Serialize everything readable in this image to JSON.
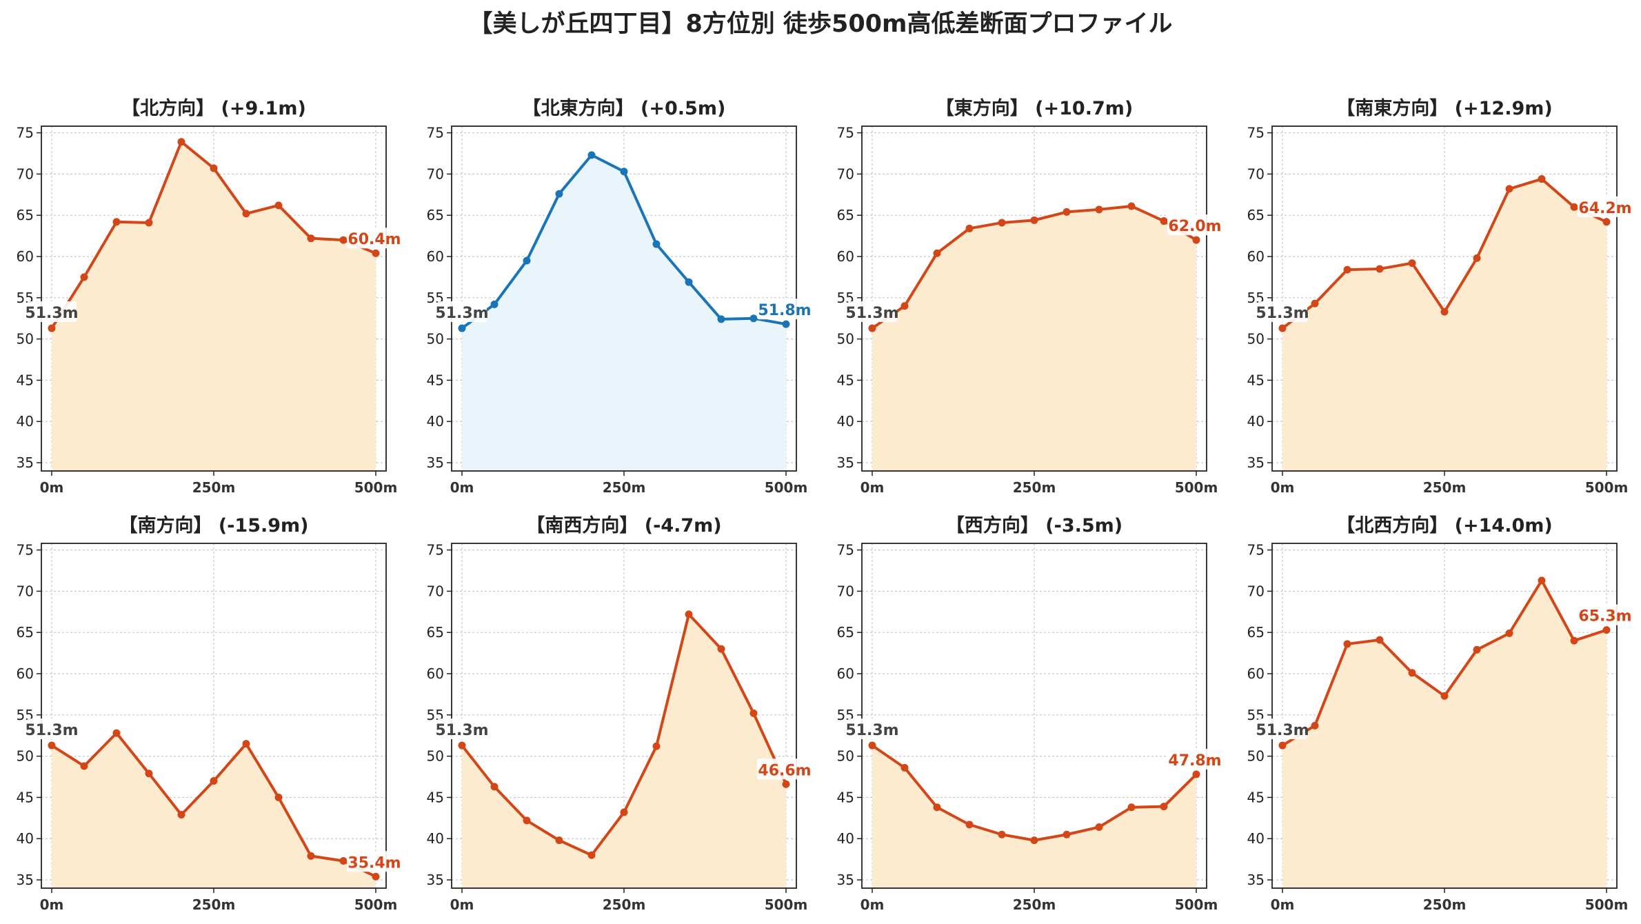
{
  "title": "【美しが丘四丁目】8方位別 徒歩500m高低差断面プロファイル",
  "colors": {
    "up_line": "#d24617",
    "up_fill": "#fdebd0",
    "flat_line": "#1a75b8",
    "flat_fill": "#e9f5fb",
    "start_label": "#444444"
  },
  "chart_data": [
    {
      "type": "area",
      "title": "【北方向】 (+9.1m)",
      "style": "up",
      "x": [
        0,
        50,
        100,
        150,
        200,
        250,
        300,
        350,
        400,
        450,
        500
      ],
      "y": [
        51.3,
        57.5,
        64.2,
        64.1,
        73.9,
        70.7,
        65.2,
        66.2,
        62.2,
        62.0,
        60.4
      ],
      "start_label": "51.3m",
      "end_label": "60.4m",
      "ylim": [
        34,
        75.8
      ],
      "yticks": [
        35,
        40,
        45,
        50,
        55,
        60,
        65,
        70,
        75
      ],
      "xticks": [
        "0m",
        "250m",
        "500m"
      ],
      "grid": true
    },
    {
      "type": "area",
      "title": "【北東方向】 (+0.5m)",
      "style": "flat",
      "x": [
        0,
        50,
        100,
        150,
        200,
        250,
        300,
        350,
        400,
        450,
        500
      ],
      "y": [
        51.3,
        54.2,
        59.5,
        67.6,
        72.3,
        70.3,
        61.5,
        56.9,
        52.4,
        52.5,
        51.8
      ],
      "start_label": "51.3m",
      "end_label": "51.8m",
      "ylim": [
        34,
        75.8
      ],
      "yticks": [
        35,
        40,
        45,
        50,
        55,
        60,
        65,
        70,
        75
      ],
      "xticks": [
        "0m",
        "250m",
        "500m"
      ],
      "grid": true
    },
    {
      "type": "area",
      "title": "【東方向】 (+10.7m)",
      "style": "up",
      "x": [
        0,
        50,
        100,
        150,
        200,
        250,
        300,
        350,
        400,
        450,
        500
      ],
      "y": [
        51.3,
        54.0,
        60.4,
        63.4,
        64.1,
        64.4,
        65.4,
        65.7,
        66.1,
        64.3,
        62.0
      ],
      "start_label": "51.3m",
      "end_label": "62.0m",
      "ylim": [
        34,
        75.8
      ],
      "yticks": [
        35,
        40,
        45,
        50,
        55,
        60,
        65,
        70,
        75
      ],
      "xticks": [
        "0m",
        "250m",
        "500m"
      ],
      "grid": true
    },
    {
      "type": "area",
      "title": "【南東方向】 (+12.9m)",
      "style": "up",
      "x": [
        0,
        50,
        100,
        150,
        200,
        250,
        300,
        350,
        400,
        450,
        500
      ],
      "y": [
        51.3,
        54.3,
        58.4,
        58.5,
        59.2,
        53.3,
        59.8,
        68.2,
        69.4,
        66.0,
        64.2
      ],
      "start_label": "51.3m",
      "end_label": "64.2m",
      "ylim": [
        34,
        75.8
      ],
      "yticks": [
        35,
        40,
        45,
        50,
        55,
        60,
        65,
        70,
        75
      ],
      "xticks": [
        "0m",
        "250m",
        "500m"
      ],
      "grid": true
    },
    {
      "type": "area",
      "title": "【南方向】 (-15.9m)",
      "style": "up",
      "x": [
        0,
        50,
        100,
        150,
        200,
        250,
        300,
        350,
        400,
        450,
        500
      ],
      "y": [
        51.3,
        48.8,
        52.8,
        47.9,
        42.9,
        47.0,
        51.5,
        45.0,
        37.9,
        37.3,
        35.4
      ],
      "start_label": "51.3m",
      "end_label": "35.4m",
      "ylim": [
        34,
        75.8
      ],
      "yticks": [
        35,
        40,
        45,
        50,
        55,
        60,
        65,
        70,
        75
      ],
      "xticks": [
        "0m",
        "250m",
        "500m"
      ],
      "grid": true
    },
    {
      "type": "area",
      "title": "【南西方向】 (-4.7m)",
      "style": "up",
      "x": [
        0,
        50,
        100,
        150,
        200,
        250,
        300,
        350,
        400,
        450,
        500
      ],
      "y": [
        51.3,
        46.3,
        42.2,
        39.8,
        38.0,
        43.2,
        51.2,
        67.2,
        63.0,
        55.2,
        46.6
      ],
      "start_label": "51.3m",
      "end_label": "46.6m",
      "ylim": [
        34,
        75.8
      ],
      "yticks": [
        35,
        40,
        45,
        50,
        55,
        60,
        65,
        70,
        75
      ],
      "xticks": [
        "0m",
        "250m",
        "500m"
      ],
      "grid": true
    },
    {
      "type": "area",
      "title": "【西方向】 (-3.5m)",
      "style": "up",
      "x": [
        0,
        50,
        100,
        150,
        200,
        250,
        300,
        350,
        400,
        450,
        500
      ],
      "y": [
        51.3,
        48.6,
        43.8,
        41.7,
        40.5,
        39.8,
        40.5,
        41.4,
        43.8,
        43.9,
        47.8
      ],
      "start_label": "51.3m",
      "end_label": "47.8m",
      "ylim": [
        34,
        75.8
      ],
      "yticks": [
        35,
        40,
        45,
        50,
        55,
        60,
        65,
        70,
        75
      ],
      "xticks": [
        "0m",
        "250m",
        "500m"
      ],
      "grid": true
    },
    {
      "type": "area",
      "title": "【北西方向】 (+14.0m)",
      "style": "up",
      "x": [
        0,
        50,
        100,
        150,
        200,
        250,
        300,
        350,
        400,
        450,
        500
      ],
      "y": [
        51.3,
        53.7,
        63.6,
        64.1,
        60.1,
        57.3,
        62.9,
        64.9,
        71.3,
        64.0,
        65.3
      ],
      "start_label": "51.3m",
      "end_label": "65.3m",
      "ylim": [
        34,
        75.8
      ],
      "yticks": [
        35,
        40,
        45,
        50,
        55,
        60,
        65,
        70,
        75
      ],
      "xticks": [
        "0m",
        "250m",
        "500m"
      ],
      "grid": true
    }
  ]
}
